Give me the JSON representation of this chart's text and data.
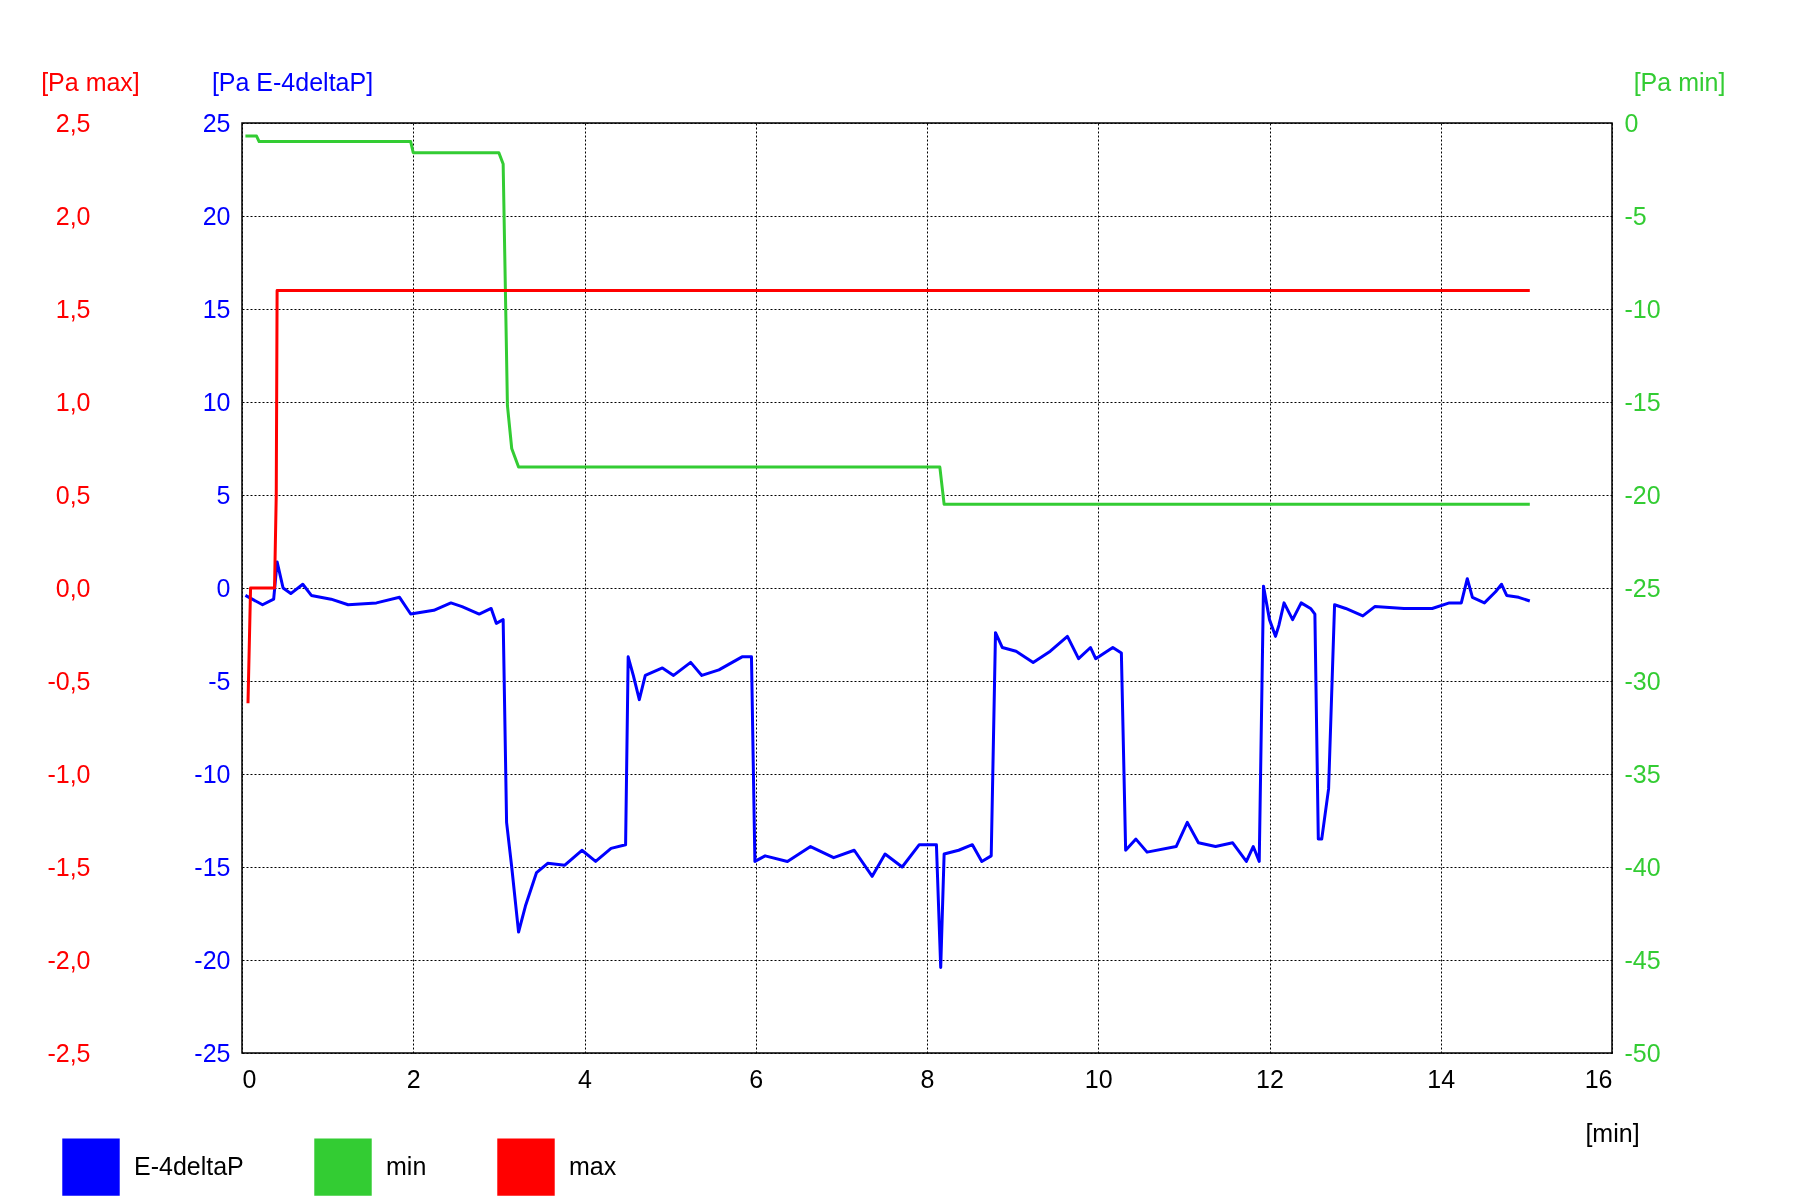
{
  "chart_data": {
    "type": "line",
    "xlabel": "[min]",
    "ylabel": "[Pa E-4deltaP]",
    "y2label": "[Pa min]",
    "y3label": "[Pa max]",
    "xlim": [
      0,
      16
    ],
    "xticks": [
      0,
      2,
      4,
      6,
      8,
      10,
      12,
      14,
      16
    ],
    "ylim": [
      -25,
      25
    ],
    "yticks": [
      -25,
      -20,
      -15,
      -10,
      -5,
      0,
      5,
      10,
      15,
      20,
      25
    ],
    "y2lim": [
      -50,
      0
    ],
    "y2ticks": [
      -50,
      -45,
      -40,
      -35,
      -30,
      -25,
      -20,
      -15,
      -10,
      -5,
      0
    ],
    "y3lim": [
      -2.5,
      2.5
    ],
    "y3ticks": [
      {
        "value": -2.5,
        "label": "-2,5"
      },
      {
        "value": -2,
        "label": "-2,0"
      },
      {
        "value": -1.5,
        "label": "-1,5"
      },
      {
        "value": -1,
        "label": "-1,0"
      },
      {
        "value": -0.5,
        "label": "-0,5"
      },
      {
        "value": 0,
        "label": "0,0"
      },
      {
        "value": 0.5,
        "label": "0,5"
      },
      {
        "value": 1,
        "label": "1,0"
      },
      {
        "value": 1.5,
        "label": "1,5"
      },
      {
        "value": 2,
        "label": "2,0"
      },
      {
        "value": 2.5,
        "label": "2,5"
      }
    ],
    "grid": true,
    "legend": "bottom left",
    "line_style": "solid",
    "marker": "none",
    "series": [
      {
        "name": "E-4deltaP",
        "color": "#0000ff",
        "axis": "y",
        "x": [
          0.04,
          0.24,
          0.37,
          0.41,
          0.48,
          0.57,
          0.71,
          0.81,
          1.04,
          1.24,
          1.57,
          1.84,
          1.97,
          2.24,
          2.44,
          2.57,
          2.77,
          2.91,
          2.97,
          3.05,
          3.09,
          3.15,
          3.23,
          3.31,
          3.44,
          3.57,
          3.77,
          3.97,
          4.13,
          4.31,
          4.48,
          4.51,
          4.57,
          4.64,
          4.71,
          4.91,
          5.04,
          5.24,
          5.37,
          5.57,
          5.84,
          5.95,
          5.99,
          6.11,
          6.37,
          6.64,
          6.91,
          7.15,
          7.36,
          7.51,
          7.71,
          7.91,
          8.11,
          8.16,
          8.2,
          8.37,
          8.53,
          8.64,
          8.75,
          8.8,
          8.88,
          9.04,
          9.24,
          9.44,
          9.64,
          9.77,
          9.91,
          9.97,
          10.17,
          10.27,
          10.32,
          10.44,
          10.57,
          10.91,
          11.04,
          11.17,
          11.37,
          11.57,
          11.73,
          11.81,
          11.88,
          11.93,
          12.0,
          12.07,
          12.11,
          12.17,
          12.27,
          12.37,
          12.48,
          12.53,
          12.57,
          12.61,
          12.69,
          12.76,
          12.89,
          13.09,
          13.23,
          13.57,
          13.9,
          14.1,
          14.24,
          14.31,
          14.37,
          14.51,
          14.64,
          14.71,
          14.77,
          14.91,
          15.04
        ],
        "values": [
          -0.4,
          -0.9,
          -0.6,
          1.4,
          0,
          -0.3,
          0.2,
          -0.4,
          -0.6,
          -0.9,
          -0.8,
          -0.5,
          -1.4,
          -1.2,
          -0.8,
          -1.0,
          -1.4,
          -1.1,
          -1.9,
          -1.7,
          -12.6,
          -15,
          -18.5,
          -17.1,
          -15.3,
          -14.8,
          -14.9,
          -14.1,
          -14.7,
          -14,
          -13.8,
          -3.7,
          -4.7,
          -6,
          -4.7,
          -4.3,
          -4.7,
          -4,
          -4.7,
          -4.4,
          -3.7,
          -3.7,
          -14.7,
          -14.4,
          -14.7,
          -13.9,
          -14.5,
          -14.1,
          -15.5,
          -14.3,
          -15,
          -13.8,
          -13.8,
          -20.4,
          -14.3,
          -14.1,
          -13.8,
          -14.7,
          -14.4,
          -2.4,
          -3.2,
          -3.4,
          -4,
          -3.4,
          -2.6,
          -3.8,
          -3.2,
          -3.8,
          -3.2,
          -3.5,
          -14.1,
          -13.5,
          -14.2,
          -13.9,
          -12.6,
          -13.7,
          -13.9,
          -13.7,
          -14.7,
          -13.9,
          -14.7,
          0.1,
          -1.7,
          -2.6,
          -2,
          -0.8,
          -1.7,
          -0.8,
          -1.1,
          -1.4,
          -13.5,
          -13.5,
          -10.8,
          -0.9,
          -1.1,
          -1.5,
          -1,
          -1.1,
          -1.1,
          -0.8,
          -0.8,
          0.5,
          -0.5,
          -0.8,
          -0.2,
          0.2,
          -0.4,
          -0.5,
          -0.7
        ]
      },
      {
        "name": "min",
        "color": "#33cc33",
        "axis": "y2",
        "x": [
          0.04,
          0.17,
          0.2,
          1.97,
          2.0,
          3.0,
          3.05,
          3.08,
          3.1,
          3.15,
          3.23,
          8.15,
          8.2,
          15.04
        ],
        "values": [
          -0.7,
          -0.7,
          -1.0,
          -1.0,
          -1.6,
          -1.6,
          -2.2,
          -10,
          -15.2,
          -17.5,
          -18.5,
          -18.5,
          -20.5,
          -20.5
        ]
      },
      {
        "name": "max",
        "color": "#ff0000",
        "axis": "y3",
        "x": [
          0.07,
          0.1,
          0.38,
          0.4,
          0.41,
          15.04
        ],
        "values": [
          -0.62,
          0.0,
          0.0,
          0.5,
          1.6,
          1.6
        ]
      }
    ]
  }
}
